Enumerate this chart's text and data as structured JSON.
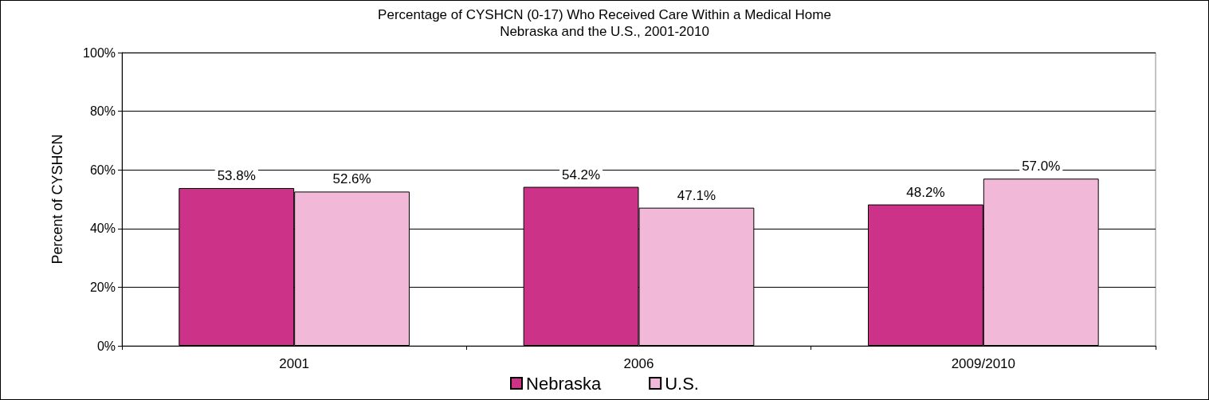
{
  "chart_data": {
    "type": "bar",
    "title": "Percentage of CYSHCN (0-17) Who Received Care Within a Medical Home",
    "subtitle": "Nebraska and the U.S., 2001-2010",
    "ylabel": "Percent of CYSHCN",
    "categories": [
      "2001",
      "2006",
      "2009/2010"
    ],
    "series": [
      {
        "name": "Nebraska",
        "color": "#cc3388",
        "values": [
          53.8,
          54.2,
          48.2
        ],
        "value_labels": [
          "53.8%",
          "54.2%",
          "48.2%"
        ]
      },
      {
        "name": "U.S.",
        "color": "#f2b8d8",
        "values": [
          52.6,
          47.1,
          57.0
        ],
        "value_labels": [
          "52.6%",
          "47.1%",
          "57.0%"
        ]
      }
    ],
    "ylim": [
      0,
      100
    ],
    "yticks": [
      {
        "value": 0,
        "label": "0%"
      },
      {
        "value": 20,
        "label": "20%"
      },
      {
        "value": 40,
        "label": "40%"
      },
      {
        "value": 60,
        "label": "60%"
      },
      {
        "value": 80,
        "label": "80%"
      },
      {
        "value": 100,
        "label": "100%"
      }
    ],
    "grid": "y",
    "legend": "bottom"
  }
}
